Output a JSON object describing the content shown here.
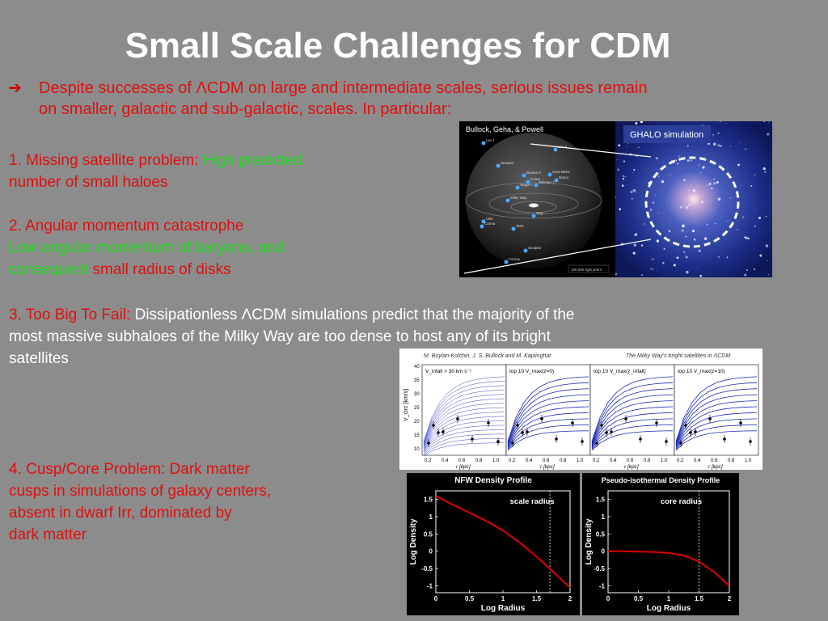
{
  "slide": {
    "title": "Small Scale Challenges for CDM",
    "intro_line1": "Despite successes of ΛCDM on large and intermediate scales, serious issues remain",
    "intro_line2": "on smaller, galactic and sub-galactic, scales. In particular:",
    "p1_label": "1.   Missing satellite problem: ",
    "p1_green": "High predicted",
    "p1_rest": "number of small haloes",
    "p2_label": "2.  Angular momentum catastrophe",
    "p2_colon": ":",
    "p2_green1": "Low angular momentum of baryons, and",
    "p2_green2": "consequent ",
    "p2_red": "small radius of disks",
    "p3_label": "3.  Too Big To Fail: ",
    "p3_white1": "Dissipationless ΛCDM simulations predict that the majority of the",
    "p3_white2": "most massive subhaloes of the Milky Way are too dense to host any of its bright",
    "p3_white3": "satellites",
    "p4_line1": "4. Cusp/Core Problem: Dark matter",
    "p4_line2": "cusps in simulations of galaxy centers,",
    "p4_line3": "absent in dwarf Irr, dominated by",
    "p4_line4": "dark matter"
  },
  "figures": {
    "sphere_caption": "Bullock, Geha, & Powell",
    "ghalo_label": "GHALO simulation",
    "sphere_scale": "100,000 light years",
    "sphere_labels": [
      "Leo I",
      "Leo II",
      "Sextans",
      "Ursa Minor",
      "Draco",
      "Bootes II",
      "Coma",
      "Segue I",
      "Willman 1",
      "Milky Way",
      "Sag",
      "LMC",
      "Carina",
      "SMC",
      "Sculptor",
      "Fornax"
    ],
    "panels_header_left": "M. Boylan-Kolchin, J. S. Bullock and M. Kaplinghat",
    "panels_header_right": "The Milky Way's bright satellites in ΛCDM",
    "panels_titles": [
      "V_infall > 30 km s⁻¹",
      "top 10 V_max(z=0)",
      "top 10 V_max(z_infall)",
      "top 10 V_max(z=10)"
    ],
    "panels_ylabel": "V_circ [km/s]",
    "panels_xlabel": "r [kpc]",
    "panels_yticks": [
      "40",
      "35",
      "30",
      "25",
      "20",
      "15",
      "10"
    ],
    "panels_xticks": [
      "0.2",
      "0.4",
      "0.6",
      "0.8",
      "1.0"
    ]
  },
  "chart_data": [
    {
      "type": "line",
      "title": "NFW Density Profile",
      "xlabel": "Log Radius",
      "ylabel": "Log Density",
      "annotation": "scale radius",
      "x": [
        0,
        0.25,
        0.5,
        0.75,
        1.0,
        1.25,
        1.5,
        1.75,
        2.0
      ],
      "y": [
        1.6,
        1.35,
        1.12,
        0.88,
        0.6,
        0.25,
        -0.15,
        -0.6,
        -1.05
      ],
      "xlim": [
        0,
        2
      ],
      "ylim": [
        -1.2,
        1.75
      ],
      "xticks": [
        "0",
        "0.5",
        "1",
        "1.5",
        "2"
      ],
      "yticks": [
        "1.5",
        "1",
        "0.5",
        "0",
        "-0.5",
        "-1"
      ],
      "marker_x": 1.7,
      "series_color": "#e00000"
    },
    {
      "type": "line",
      "title": "Pseudo-isothermal Density Profile",
      "xlabel": "Log Radius",
      "ylabel": "Log Density",
      "annotation": "core radius",
      "x": [
        0,
        0.25,
        0.5,
        0.75,
        1.0,
        1.25,
        1.5,
        1.75,
        2.0
      ],
      "y": [
        0.0,
        0.0,
        -0.01,
        -0.02,
        -0.05,
        -0.12,
        -0.3,
        -0.6,
        -1.0
      ],
      "xlim": [
        0,
        2
      ],
      "ylim": [
        -1.2,
        1.75
      ],
      "xticks": [
        "0",
        "0.5",
        "1",
        "1.5",
        "2"
      ],
      "yticks": [
        "1.5",
        "1",
        "0.5",
        "0",
        "-0.5",
        "-1"
      ],
      "marker_x": 1.5,
      "series_color": "#e00000"
    }
  ]
}
